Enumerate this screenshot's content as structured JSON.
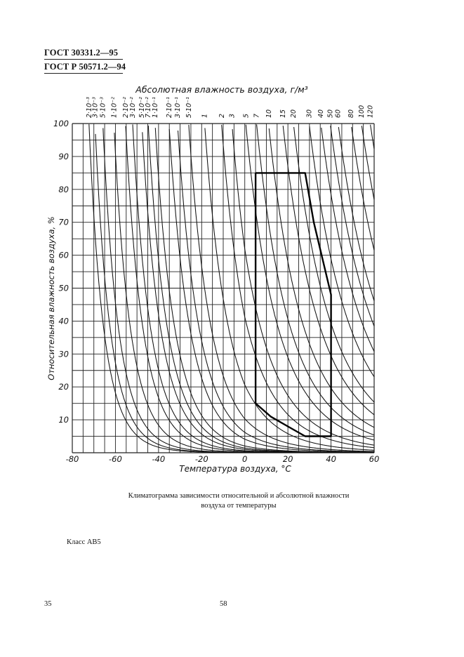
{
  "header": {
    "standard_1": "ГОСТ 30331.2—95",
    "standard_2": "ГОСТ Р 50571.2—94"
  },
  "caption": {
    "line1": "Климатограмма зависимости относительной и абсолютной влажности",
    "line2": "воздуха от температуры"
  },
  "class_label": "Класс АВ5",
  "footer": {
    "left_number": "35",
    "page_number": "58"
  },
  "chart_data": {
    "type": "line",
    "title": "Абсолютная влажность воздуха, г/м³",
    "xlabel": "Температура воздуха, °C",
    "ylabel": "Относительная влажность воздуха, %",
    "xlim": [
      -80,
      60
    ],
    "ylim": [
      0,
      100
    ],
    "x_ticks": [
      "-80",
      "-60",
      "-40",
      "-20",
      "0",
      "20",
      "40",
      "60"
    ],
    "y_ticks": [
      "10",
      "20",
      "30",
      "40",
      "50",
      "60",
      "70",
      "80",
      "90",
      "100"
    ],
    "grid": true,
    "absolute_humidity_curves": [
      {
        "label": "2·10⁻³",
        "value": 0.002
      },
      {
        "label": "3·10⁻³",
        "value": 0.003
      },
      {
        "label": "5·10⁻³",
        "value": 0.005
      },
      {
        "label": "1·10⁻²",
        "value": 0.01
      },
      {
        "label": "2·10⁻²",
        "value": 0.02
      },
      {
        "label": "3·10⁻²",
        "value": 0.03
      },
      {
        "label": "5·10⁻²",
        "value": 0.05
      },
      {
        "label": "7·10⁻²",
        "value": 0.07
      },
      {
        "label": "1·10⁻¹",
        "value": 0.1
      },
      {
        "label": "2·10⁻¹",
        "value": 0.2
      },
      {
        "label": "3·10⁻¹",
        "value": 0.3
      },
      {
        "label": "5·10⁻¹",
        "value": 0.5
      },
      {
        "label": "1",
        "value": 1
      },
      {
        "label": "2",
        "value": 2
      },
      {
        "label": "3",
        "value": 3
      },
      {
        "label": "5",
        "value": 5
      },
      {
        "label": "7",
        "value": 7
      },
      {
        "label": "10",
        "value": 10
      },
      {
        "label": "15",
        "value": 15
      },
      {
        "label": "20",
        "value": 20
      },
      {
        "label": "30",
        "value": 30
      },
      {
        "label": "40",
        "value": 40
      },
      {
        "label": "50",
        "value": 50
      },
      {
        "label": "60",
        "value": 60
      },
      {
        "label": "80",
        "value": 80
      },
      {
        "label": "100",
        "value": 100
      },
      {
        "label": "120",
        "value": 120
      }
    ],
    "class_region": {
      "name": "AB5",
      "points": [
        [
          5,
          85
        ],
        [
          28,
          85
        ],
        [
          32,
          70
        ],
        [
          40,
          48
        ],
        [
          40,
          5
        ],
        [
          28,
          5
        ],
        [
          20,
          8
        ],
        [
          12,
          11
        ],
        [
          5,
          15
        ],
        [
          5,
          85
        ]
      ]
    }
  }
}
